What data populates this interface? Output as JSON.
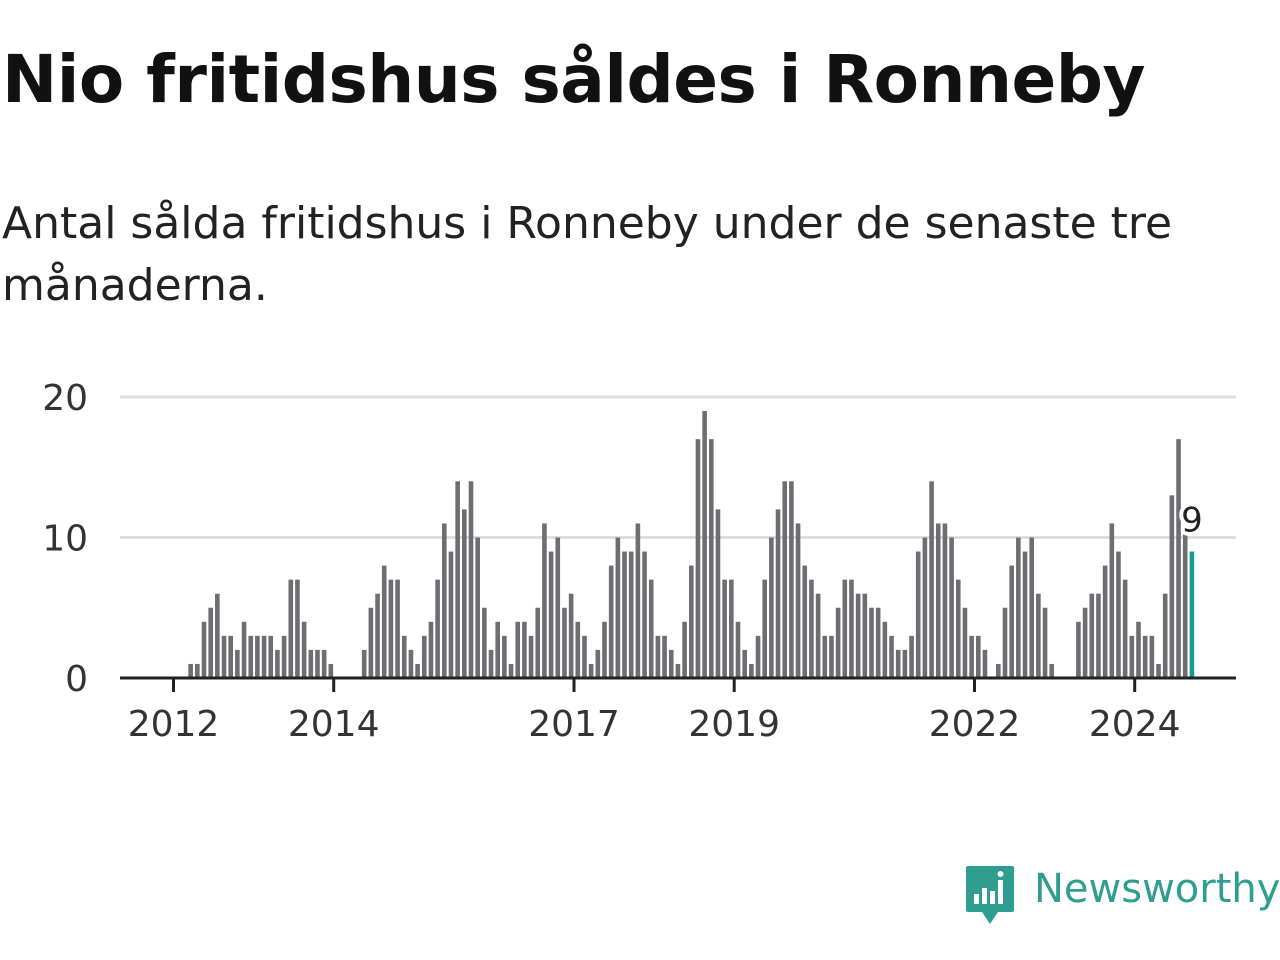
{
  "header": {
    "title": "Nio fritidshus såldes i Ronneby",
    "subtitle": "Antal sålda fritidshus i Ronneby under de senaste tre månaderna."
  },
  "brand": {
    "name": "Newsworthy",
    "icon": "newsworthy-logo-icon",
    "color": "#2f9e90"
  },
  "colors": {
    "bar": "#6e6d72",
    "highlight": "#179c8e",
    "grid": "#dddddd",
    "axis": "#222222"
  },
  "chart_data": {
    "type": "bar",
    "start": "2012-01",
    "frequency": "monthly",
    "ylim": [
      0,
      20
    ],
    "yticks": [
      0,
      10,
      20
    ],
    "xticks": [
      {
        "label": "2012",
        "date": "2012-01"
      },
      {
        "label": "2014",
        "date": "2014-01"
      },
      {
        "label": "2017",
        "date": "2017-01"
      },
      {
        "label": "2019",
        "date": "2019-01"
      },
      {
        "label": "2022",
        "date": "2022-01"
      },
      {
        "label": "2024",
        "date": "2024-01"
      }
    ],
    "grid": true,
    "highlight_last": true,
    "last_value_label": "9",
    "values": [
      0,
      0,
      1,
      1,
      4,
      5,
      6,
      3,
      3,
      2,
      4,
      3,
      3,
      3,
      3,
      2,
      3,
      7,
      7,
      4,
      2,
      2,
      2,
      1,
      0,
      0,
      0,
      0,
      2,
      5,
      6,
      8,
      7,
      7,
      3,
      2,
      1,
      3,
      4,
      7,
      11,
      9,
      14,
      12,
      14,
      10,
      5,
      2,
      4,
      3,
      1,
      4,
      4,
      3,
      5,
      11,
      9,
      10,
      5,
      6,
      4,
      3,
      1,
      2,
      4,
      8,
      10,
      9,
      9,
      11,
      9,
      7,
      3,
      3,
      2,
      1,
      4,
      8,
      17,
      19,
      17,
      12,
      7,
      7,
      4,
      2,
      1,
      3,
      7,
      10,
      12,
      14,
      14,
      11,
      8,
      7,
      6,
      3,
      3,
      5,
      7,
      7,
      6,
      6,
      5,
      5,
      4,
      3,
      2,
      2,
      3,
      9,
      10,
      14,
      11,
      11,
      10,
      7,
      5,
      3,
      3,
      2,
      0,
      1,
      5,
      8,
      10,
      9,
      10,
      6,
      5,
      1,
      0,
      0,
      0,
      4,
      5,
      6,
      6,
      8,
      11,
      9,
      7,
      3,
      4,
      3,
      3,
      1,
      6,
      13,
      17,
      11,
      9
    ]
  }
}
